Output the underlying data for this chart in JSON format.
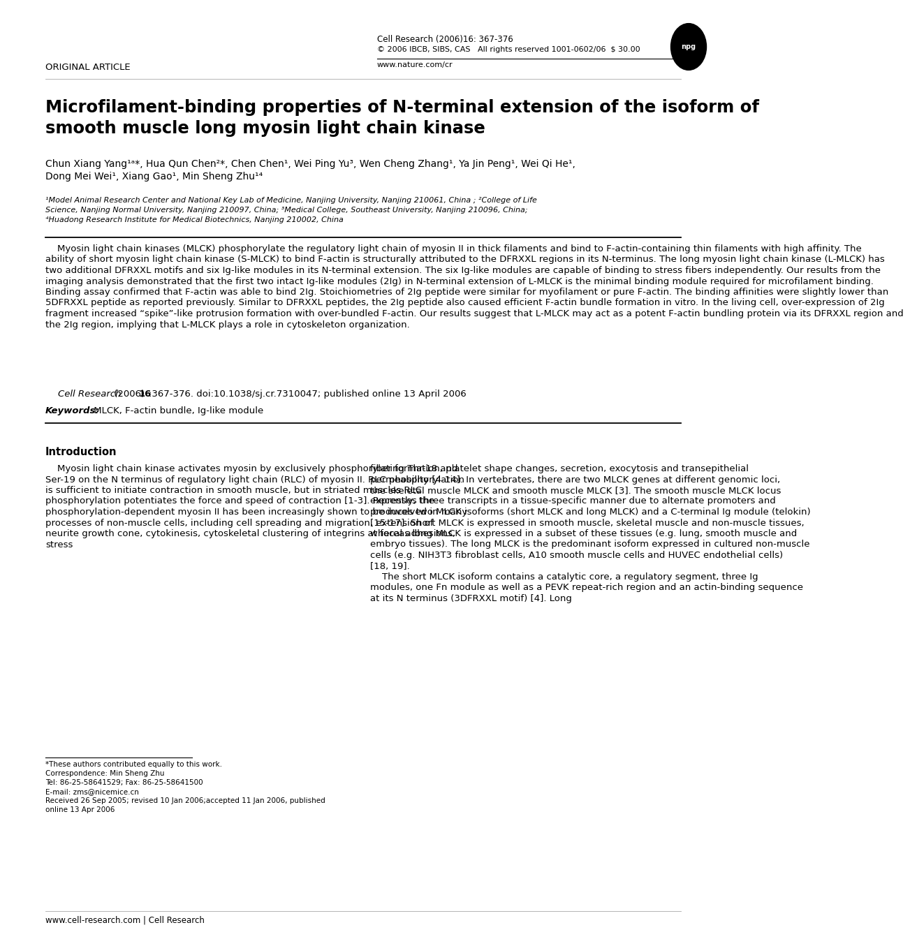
{
  "background_color": "#ffffff",
  "page_width": 10.2,
  "page_height": 13.35,
  "header_original_article": "ORIGINAL ARTICLE",
  "header_journal_line1": "Cell Research (2006)16: 367-376",
  "header_journal_line2": "© 2006 IBCB, SIBS, CAS   All rights reserved 1001-0602/06  $ 30.00",
  "header_journal_line3": "www.nature.com/cr",
  "title": "Microfilament-binding properties of N-terminal extension of the isoform of\nsmooth muscle long myosin light chain kinase",
  "authors_line1": "Chun Xiang Yang¹ᵃ*, Hua Qun Chen²*, Chen Chen¹, Wei Ping Yu³, Wen Cheng Zhang¹, Ya Jin Peng¹, Wei Qi He¹,",
  "authors_line2": "Dong Mei Wei¹, Xiang Gao¹, Min Sheng Zhu¹⁴",
  "affil_line1": "¹Model Animal Research Center and National Key Lab of Medicine, Nanjing University, Nanjing 210061, China ; ²College of Life",
  "affil_line2": "Science, Nanjing Normal University, Nanjing 210097, China; ³Medical College, Southeast University, Nanjing 210096, China;",
  "affil_line3": "⁴Huadong Research Institute for Medical Biotechnics, Nanjing 210002, China",
  "abstract_indent": "    Myosin light chain kinases (MLCK) phosphorylate the regulatory light chain of myosin II in thick filaments and bind to F-actin-containing thin filaments with high affinity. The ability of short myosin light chain kinase (S-MLCK) to bind F-actin is structurally attributed to the DFRXXL regions in its N-terminus. The long myosin light chain kinase (L-MLCK) has two additional DFRXXL motifs and six Ig-like modules in its N-terminal extension. The six Ig-like modules are capable of binding to stress fibers independently. Our results from the imaging analysis demonstrated that the first two intact Ig-like modules (2Ig) in N-terminal extension of L-MLCK is the minimal binding module required for microfilament binding. Binding assay confirmed that F-actin was able to bind 2Ig. Stoichiometries of 2Ig peptide were similar for myofilament or pure F-actin. The binding affinities were slightly lower than 5DFRXXL peptide as reported previously. Similar to DFRXXL peptides, the 2Ig peptide also caused efficient F-actin bundle formation in vitro. In the living cell, over-expression of 2Ig fragment increased “spike”-like protrusion formation with over-bundled F-actin. Our results suggest that L-MLCK may act as a potent F-actin bundling protein via its DFRXXL region and the 2Ig region, implying that L-MLCK plays a role in cytoskeleton organization.",
  "citation_italic": "Cell Research",
  "citation_normal1": " (2006) ",
  "citation_bold": "16",
  "citation_normal2": ":367-376. doi:10.1038/sj.cr.7310047; published online 13 April 2006",
  "keywords_bold_italic": "Keywords:",
  "keywords_normal": " MLCK, F-actin bundle, Ig-like module",
  "intro_heading": "Introduction",
  "intro_left": "    Myosin light chain kinase activates myosin by exclusively phosphorylating Thr-18 and Ser-19 on the N terminus of regulatory light chain (RLC) of myosin II. RLC phosphorylation is sufficient to initiate contraction in smooth muscle, but in striated muscles RLC phosphorylation potentiates the force and speed of contraction [1-3]. Recently, the phosphorylation-dependent myosin II has been increasingly shown to be involved in many processes of non-muscle cells, including cell spreading and migration, extension of neurite growth cone, cytokinesis, cytoskeletal clustering of integrins at focal adhesions, stress",
  "intro_right": "fiber formation, platelet shape changes, secretion, exocytosis and transepithelial permeability [4-14]. In vertebrates, there are two MLCK genes at different genomic loci, the skeletal muscle MLCK and smooth muscle MLCK [3]. The smooth muscle MLCK locus expresses three transcripts in a tissue-specific manner due to alternate promoters and produces two MLCK isoforms (short MLCK and long MLCK) and a C-terminal Ig module (telokin) [15-17]. Short MLCK is expressed in smooth muscle, skeletal muscle and non-muscle tissues, whereas long MLCK is expressed in a subset of these tissues (e.g. lung, smooth muscle and embryo tissues). The long MLCK is the predominant isoform expressed in cultured non-muscle cells (e.g. NIH3T3 fibroblast cells, A10 smooth muscle cells and HUVEC endothelial cells) [18, 19].\n    The short MLCK isoform contains a catalytic core, a regulatory segment, three Ig modules, one Fn module as well as a PEVK repeat-rich region and an actin-binding sequence at its N terminus (3DFRXXL motif) [4]. Long",
  "footnote_line": "*These authors contributed equally to this work.\nCorrespondence: Min Sheng Zhu\nTel: 86-25-58641529; Fax: 86-25-58641500\nE-mail: zms@nicemice.cn\nReceived 26 Sep 2005; revised 10 Jan 2006;accepted 11 Jan 2006, published\nonline 13 Apr 2006",
  "footer": "www.cell-research.com | Cell Research"
}
